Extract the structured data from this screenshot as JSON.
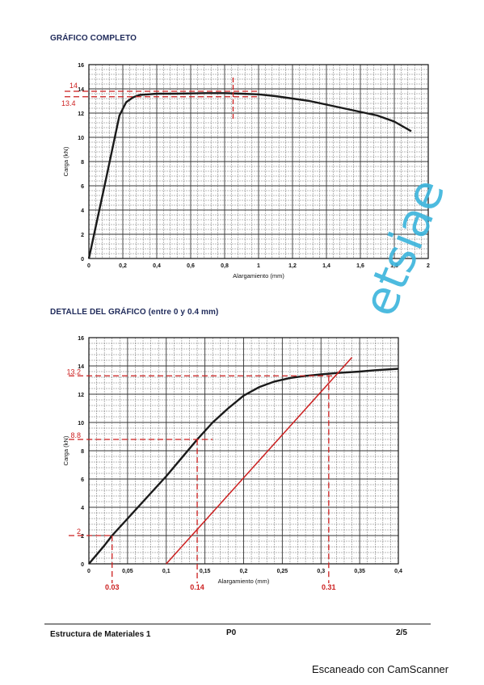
{
  "page": {
    "section1_title": "GRÁFICO COMPLETO",
    "section2_title": "DETALLE DEL GRÁFICO (entre 0 y 0.4 mm)",
    "footer_left": "Estructura de Materiales 1",
    "footer_center": "P0",
    "footer_right": "2/5",
    "scanner_note": "Escaneado con CamScanner",
    "watermark": "etsiae"
  },
  "colors": {
    "curve": "#1a1a1a",
    "annotation": "#cc1f1f",
    "title": "#1f2a5a",
    "watermark": "#3ab4dc"
  },
  "chart_data": [
    {
      "type": "line",
      "title": "GRÁFICO COMPLETO",
      "xlabel": "Alargamiento (mm)",
      "ylabel": "Carga (kN)",
      "xlim": [
        0,
        2
      ],
      "ylim": [
        0,
        16
      ],
      "xticks": [
        "0",
        "0,2",
        "0,4",
        "0,6",
        "0,8",
        "1",
        "1,2",
        "1,4",
        "1,6",
        "1,8",
        "2"
      ],
      "yticks": [
        "0",
        "2",
        "4",
        "6",
        "8",
        "10",
        "12",
        "14",
        "16"
      ],
      "grid": true,
      "series": [
        {
          "x": [
            0,
            0.1,
            0.18,
            0.22,
            0.26,
            0.3,
            0.35,
            0.4,
            0.5,
            0.6,
            0.7,
            0.8,
            0.9,
            1.0,
            1.1,
            1.2,
            1.3,
            1.4,
            1.5,
            1.6,
            1.7,
            1.8,
            1.9
          ],
          "y": [
            0,
            6.5,
            11.8,
            12.9,
            13.3,
            13.5,
            13.55,
            13.6,
            13.6,
            13.62,
            13.65,
            13.65,
            13.6,
            13.55,
            13.4,
            13.2,
            13.0,
            12.7,
            12.4,
            12.1,
            11.8,
            11.3,
            10.5
          ]
        }
      ],
      "annotations": [
        {
          "label": "14",
          "y": 13.8
        },
        {
          "label": "13.4",
          "y": 13.35
        }
      ],
      "marker_x": 0.85
    },
    {
      "type": "line",
      "title": "DETALLE DEL GRÁFICO (entre 0 y 0.4 mm)",
      "xlabel": "Alargamiento (mm)",
      "ylabel": "Carga (kN)",
      "xlim": [
        0,
        0.4
      ],
      "ylim": [
        0,
        16
      ],
      "xticks": [
        "0",
        "0,05",
        "0,1",
        "0,15",
        "0,2",
        "0,25",
        "0,3",
        "0,35",
        "0,4"
      ],
      "yticks": [
        "0",
        "2",
        "4",
        "6",
        "8",
        "10",
        "12",
        "14",
        "16"
      ],
      "grid": true,
      "series": [
        {
          "x": [
            0,
            0.02,
            0.03,
            0.05,
            0.08,
            0.1,
            0.12,
            0.14,
            0.16,
            0.18,
            0.2,
            0.22,
            0.24,
            0.26,
            0.28,
            0.3,
            0.32,
            0.35,
            0.37,
            0.4
          ],
          "y": [
            0,
            1.3,
            2.0,
            3.2,
            5.0,
            6.2,
            7.5,
            8.8,
            10.0,
            11.0,
            11.9,
            12.5,
            12.9,
            13.15,
            13.3,
            13.4,
            13.5,
            13.6,
            13.7,
            13.8
          ]
        }
      ],
      "offset_line": [
        [
          0.1,
          0
        ],
        [
          0.34,
          14.6
        ]
      ],
      "annotations_y": [
        {
          "label": "13.2",
          "y": 13.3
        },
        {
          "label": "8.8",
          "y": 8.8
        },
        {
          "label": "2",
          "y": 2.0
        }
      ],
      "annotations_x": [
        {
          "label": "0.03",
          "x": 0.03
        },
        {
          "label": "0.14",
          "x": 0.14
        },
        {
          "label": "0.31",
          "x": 0.31
        }
      ]
    }
  ]
}
